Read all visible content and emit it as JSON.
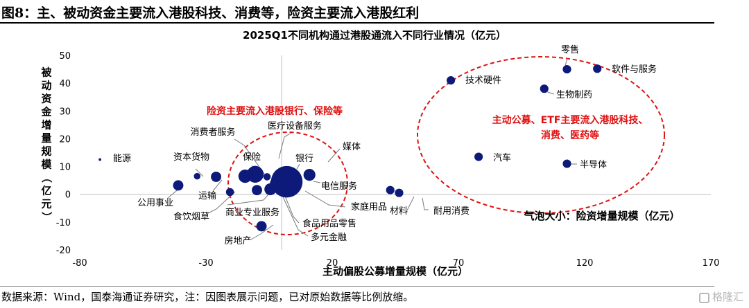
{
  "figure_title": "图8：主、被动资金主要流入港股科技、消费等，险资主要流入港股红利",
  "source_note": "数据来源：Wind，国泰海通证券研究，注：因图表展示问题，已对原始数据等比例放缩。",
  "watermark": "格隆汇",
  "chart_data": {
    "type": "scatter",
    "title": "2025Q1不同机构通过港股通流入不同行业情况（亿元）",
    "xlabel": "主动偏股公募增量规模（亿元）",
    "ylabel": "被动资金增量规模（亿元）",
    "xlim": [
      -80,
      170
    ],
    "ylim": [
      -20,
      50
    ],
    "xticks": [
      -80,
      -30,
      20,
      70,
      120,
      170
    ],
    "yticks": [
      -20,
      -10,
      0,
      10,
      20,
      30,
      40,
      50
    ],
    "grid": false,
    "color": "#0d1a7a",
    "annotation_color": "#e01010",
    "points": [
      {
        "name": "能源",
        "x": -72,
        "y": 12.5,
        "size": 0.2
      },
      {
        "name": "公用事业",
        "x": -41,
        "y": 3.2,
        "size": 3
      },
      {
        "name": "资本货物",
        "x": -33.5,
        "y": 6.5,
        "size": 1.2
      },
      {
        "name": "运输",
        "x": -26,
        "y": 6.3,
        "size": 3
      },
      {
        "name": "食饮烟草",
        "x": -20.5,
        "y": 0.8,
        "size": 1.8
      },
      {
        "name": "消费者服务",
        "x": -14.5,
        "y": 6.5,
        "size": 5
      },
      {
        "name": "保险",
        "x": -10.5,
        "y": 7.2,
        "size": 8
      },
      {
        "name": "房地产",
        "x": -8,
        "y": -11.5,
        "size": 3
      },
      {
        "name": "商业专业服务",
        "x": -9.8,
        "y": 1.5,
        "size": 3
      },
      {
        "name": "医疗设备服务",
        "x": -5.8,
        "y": 6.3,
        "size": 1.5
      },
      {
        "name": "多元金融",
        "x": -4.5,
        "y": 1.8,
        "size": 4
      },
      {
        "name": "食品用品零售",
        "x": -3,
        "y": 4,
        "size": 2
      },
      {
        "name": "银行",
        "x": 2,
        "y": 4.5,
        "size": 28
      },
      {
        "name": "家庭用品",
        "x": 0,
        "y": 4,
        "size": 2
      },
      {
        "name": "媒体",
        "x": 11,
        "y": 7,
        "size": 4
      },
      {
        "name": "电信服务",
        "x": 4,
        "y": 5,
        "size": 2
      },
      {
        "name": "材料",
        "x": 43,
        "y": 1.5,
        "size": 2
      },
      {
        "name": "耐用消费",
        "x": 46.5,
        "y": 0.5,
        "size": 2
      },
      {
        "name": "技术硬件",
        "x": 67,
        "y": 41,
        "size": 2
      },
      {
        "name": "汽车",
        "x": 78,
        "y": 13.5,
        "size": 2
      },
      {
        "name": "零售",
        "x": 113,
        "y": 45,
        "size": 2
      },
      {
        "name": "软件与服务",
        "x": 125,
        "y": 45.2,
        "size": 2
      },
      {
        "name": "生物制药",
        "x": 104,
        "y": 38,
        "size": 2
      },
      {
        "name": "半导体",
        "x": 113,
        "y": 11,
        "size": 2
      }
    ],
    "annotations": [
      {
        "text": "险资主要流入港股银行、保险等"
      },
      {
        "lines": [
          "主动公募、ETF主要流入港股科技、",
          "消费、医药等"
        ]
      }
    ],
    "legend_note": "气泡大小：险资增量规模（亿元）"
  }
}
